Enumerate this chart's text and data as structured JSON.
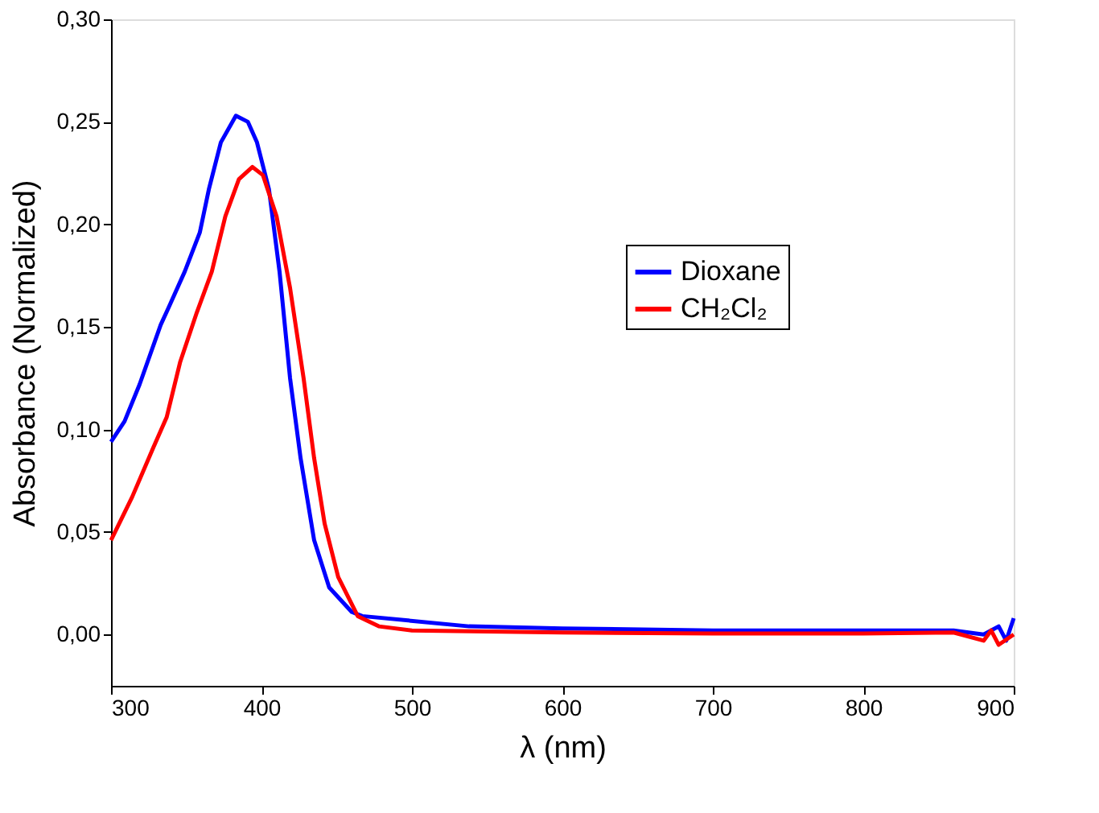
{
  "chart_data": {
    "type": "line",
    "xlabel": "λ (nm)",
    "ylabel": "Absorbance (Normalized)",
    "xlim": [
      300,
      900
    ],
    "xticks": [
      300,
      400,
      500,
      600,
      700,
      800,
      900
    ],
    "ylim": [
      -0.025,
      0.3
    ],
    "yticks": [
      {
        "value": 0,
        "label": "0,00"
      },
      {
        "value": 0.05,
        "label": "0,05"
      },
      {
        "value": 0.1,
        "label": "0,10"
      },
      {
        "value": 0.15,
        "label": "0,15"
      },
      {
        "value": 0.2,
        "label": "0,20"
      },
      {
        "value": 0.25,
        "label": "0,25"
      },
      {
        "value": 0.3,
        "label": "0,30"
      }
    ],
    "legend": "top right",
    "grid": false,
    "marker": "none",
    "line_style": "solid",
    "series": [
      {
        "name": "Dioxane",
        "color": "#0000ff",
        "x": [
          300,
          309,
          319,
          333,
          338,
          349,
          359,
          365,
          373,
          383,
          391,
          397,
          405,
          412,
          419,
          426,
          435,
          445,
          460,
          467,
          538,
          600,
          700,
          800,
          860,
          880,
          890,
          895,
          900
        ],
        "values": [
          0.094,
          0.104,
          0.122,
          0.151,
          0.159,
          0.177,
          0.196,
          0.217,
          0.24,
          0.253,
          0.25,
          0.24,
          0.217,
          0.177,
          0.125,
          0.086,
          0.046,
          0.023,
          0.011,
          0.009,
          0.004,
          0.003,
          0.002,
          0.002,
          0.002,
          0.0,
          0.004,
          -0.003,
          0.008
        ]
      },
      {
        "name": "CH₂Cl₂",
        "color": "#ff0000",
        "x": [
          300,
          314,
          328,
          337,
          346,
          357,
          367,
          376,
          385,
          394,
          401,
          410,
          419,
          428,
          435,
          442,
          451,
          464,
          478,
          500,
          600,
          700,
          800,
          860,
          880,
          885,
          890,
          900
        ],
        "values": [
          0.046,
          0.067,
          0.091,
          0.106,
          0.133,
          0.157,
          0.177,
          0.204,
          0.222,
          0.228,
          0.224,
          0.204,
          0.169,
          0.125,
          0.086,
          0.054,
          0.028,
          0.009,
          0.004,
          0.002,
          0.001,
          0.0005,
          0.0005,
          0.001,
          -0.003,
          0.002,
          -0.005,
          0.0
        ]
      }
    ]
  }
}
